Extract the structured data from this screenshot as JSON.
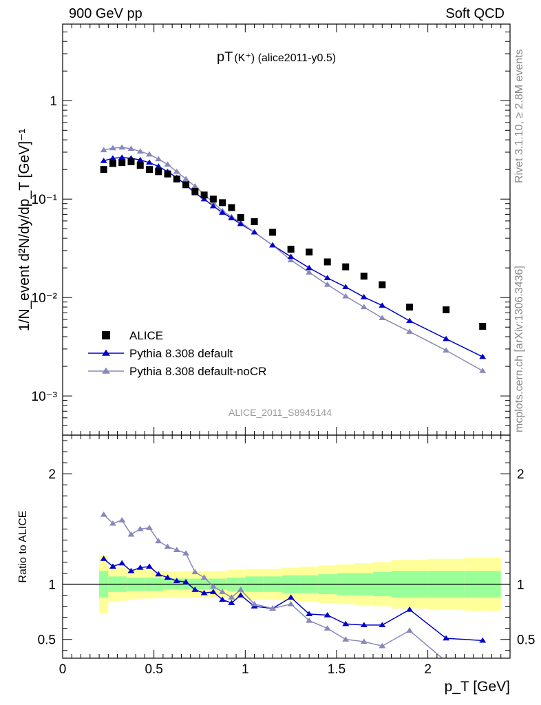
{
  "header": {
    "left": "900 GeV pp",
    "right": "Soft QCD"
  },
  "plot_title": "pT",
  "plot_title_sub": "(K⁺) (alice2011-y0.5)",
  "side_text": {
    "rivet": "Rivet 3.1.10, ≥ 2.8M events",
    "mcplots": "mcplots.cern.ch [arXiv:1306.3436]"
  },
  "watermark": "ALICE_2011_S8945144",
  "chart_data": [
    {
      "type": "scatter",
      "yscale": "log",
      "ylabel": "1/N_event d²N/dy/dp_T [GeV]⁻¹",
      "xlim": [
        0,
        2.45
      ],
      "ylim": [
        0.0004,
        6
      ],
      "y_tick_labels": [
        "10⁻³",
        "10⁻²",
        "10⁻¹",
        "1"
      ],
      "legend_position": "bottom-left",
      "series": [
        {
          "name": "ALICE",
          "color": "#000000",
          "marker": "square",
          "x": [
            0.225,
            0.275,
            0.325,
            0.375,
            0.425,
            0.475,
            0.525,
            0.575,
            0.625,
            0.675,
            0.725,
            0.775,
            0.825,
            0.875,
            0.925,
            0.975,
            1.05,
            1.15,
            1.25,
            1.35,
            1.45,
            1.55,
            1.65,
            1.75,
            1.9,
            2.1,
            2.3
          ],
          "y": [
            0.2,
            0.23,
            0.235,
            0.24,
            0.22,
            0.2,
            0.19,
            0.18,
            0.16,
            0.14,
            0.12,
            0.11,
            0.1,
            0.092,
            0.082,
            0.065,
            0.059,
            0.046,
            0.031,
            0.029,
            0.023,
            0.0205,
            0.0165,
            0.0135,
            0.008,
            0.0075,
            0.0051
          ]
        },
        {
          "name": "Pythia 8.308 default",
          "color": "#0000cc",
          "marker": "triangle",
          "x": [
            0.225,
            0.275,
            0.325,
            0.375,
            0.425,
            0.475,
            0.525,
            0.575,
            0.625,
            0.675,
            0.725,
            0.775,
            0.825,
            0.875,
            0.925,
            0.975,
            1.05,
            1.15,
            1.25,
            1.35,
            1.45,
            1.55,
            1.65,
            1.75,
            1.9,
            2.1,
            2.3
          ],
          "y": [
            0.245,
            0.26,
            0.265,
            0.26,
            0.25,
            0.235,
            0.215,
            0.19,
            0.165,
            0.14,
            0.115,
            0.1,
            0.085,
            0.073,
            0.064,
            0.056,
            0.046,
            0.034,
            0.026,
            0.02,
            0.0158,
            0.0128,
            0.0101,
            0.0083,
            0.0058,
            0.0038,
            0.0025
          ]
        },
        {
          "name": "Pythia 8.308 default-noCR",
          "color": "#8888bb",
          "marker": "triangle",
          "x": [
            0.225,
            0.275,
            0.325,
            0.375,
            0.425,
            0.475,
            0.525,
            0.575,
            0.625,
            0.675,
            0.725,
            0.775,
            0.825,
            0.875,
            0.925,
            0.975,
            1.05,
            1.15,
            1.25,
            1.35,
            1.45,
            1.55,
            1.65,
            1.75,
            1.9,
            2.1,
            2.3
          ],
          "y": [
            0.315,
            0.33,
            0.335,
            0.325,
            0.305,
            0.285,
            0.255,
            0.225,
            0.19,
            0.16,
            0.135,
            0.112,
            0.092,
            0.076,
            0.066,
            0.058,
            0.046,
            0.034,
            0.024,
            0.018,
            0.0135,
            0.0103,
            0.008,
            0.0062,
            0.0045,
            0.0029,
            0.0018
          ]
        }
      ]
    },
    {
      "type": "line",
      "ylabel": "Ratio to ALICE",
      "xlabel": "p_T [GeV]",
      "xlim": [
        0,
        2.45
      ],
      "ylim": [
        0.33,
        2.35
      ],
      "x_ticks": [
        0,
        0.5,
        1,
        1.5,
        2
      ],
      "x_tick_labels": [
        "0",
        "0.5",
        "1",
        "1.5",
        "2"
      ],
      "y_ticks": [
        0.5,
        1,
        2
      ],
      "y_tick_labels": [
        "0.5",
        "1",
        "2"
      ],
      "bands": {
        "edges": [
          0.2,
          0.25,
          0.3,
          0.35,
          0.4,
          0.45,
          0.5,
          0.55,
          0.6,
          0.65,
          0.7,
          0.75,
          0.8,
          0.85,
          0.9,
          0.95,
          1.0,
          1.1,
          1.2,
          1.3,
          1.4,
          1.5,
          1.6,
          1.7,
          1.8,
          2.0,
          2.2,
          2.4
        ],
        "yellow_halfwidth": [
          0.26,
          0.16,
          0.15,
          0.14,
          0.13,
          0.13,
          0.12,
          0.12,
          0.12,
          0.12,
          0.12,
          0.12,
          0.12,
          0.12,
          0.13,
          0.13,
          0.14,
          0.14,
          0.15,
          0.16,
          0.17,
          0.18,
          0.19,
          0.2,
          0.22,
          0.23,
          0.24
        ],
        "green_halfwidth": [
          0.12,
          0.07,
          0.07,
          0.06,
          0.06,
          0.06,
          0.06,
          0.05,
          0.05,
          0.05,
          0.05,
          0.05,
          0.05,
          0.05,
          0.06,
          0.06,
          0.07,
          0.07,
          0.08,
          0.08,
          0.09,
          0.1,
          0.1,
          0.11,
          0.12,
          0.12,
          0.12
        ]
      },
      "series": [
        {
          "name": "Pythia 8.308 default",
          "color": "#0000cc",
          "x": [
            0.225,
            0.275,
            0.325,
            0.375,
            0.425,
            0.475,
            0.525,
            0.575,
            0.625,
            0.675,
            0.725,
            0.775,
            0.825,
            0.875,
            0.925,
            0.975,
            1.05,
            1.15,
            1.25,
            1.35,
            1.45,
            1.55,
            1.65,
            1.75,
            1.9,
            2.1,
            2.3
          ],
          "y": [
            1.23,
            1.16,
            1.19,
            1.12,
            1.15,
            1.16,
            1.09,
            1.06,
            1.03,
            1.02,
            0.95,
            0.92,
            0.93,
            0.86,
            0.83,
            0.9,
            0.8,
            0.78,
            0.88,
            0.73,
            0.72,
            0.64,
            0.63,
            0.63,
            0.77,
            0.51,
            0.49
          ]
        },
        {
          "name": "Pythia 8.308 default-noCR",
          "color": "#8888bb",
          "x": [
            0.225,
            0.275,
            0.325,
            0.375,
            0.425,
            0.475,
            0.525,
            0.575,
            0.625,
            0.675,
            0.725,
            0.775,
            0.825,
            0.875,
            0.925,
            0.975,
            1.05,
            1.15,
            1.25,
            1.35,
            1.45,
            1.55,
            1.65,
            1.75,
            1.9,
            2.1,
            2.3
          ],
          "y": [
            1.63,
            1.55,
            1.58,
            1.45,
            1.5,
            1.51,
            1.39,
            1.34,
            1.31,
            1.28,
            1.11,
            1.06,
            0.98,
            0.93,
            0.88,
            0.95,
            0.82,
            0.78,
            0.82,
            0.67,
            0.6,
            0.5,
            0.48,
            0.44,
            0.58,
            0.3,
            0.18
          ]
        }
      ]
    }
  ]
}
